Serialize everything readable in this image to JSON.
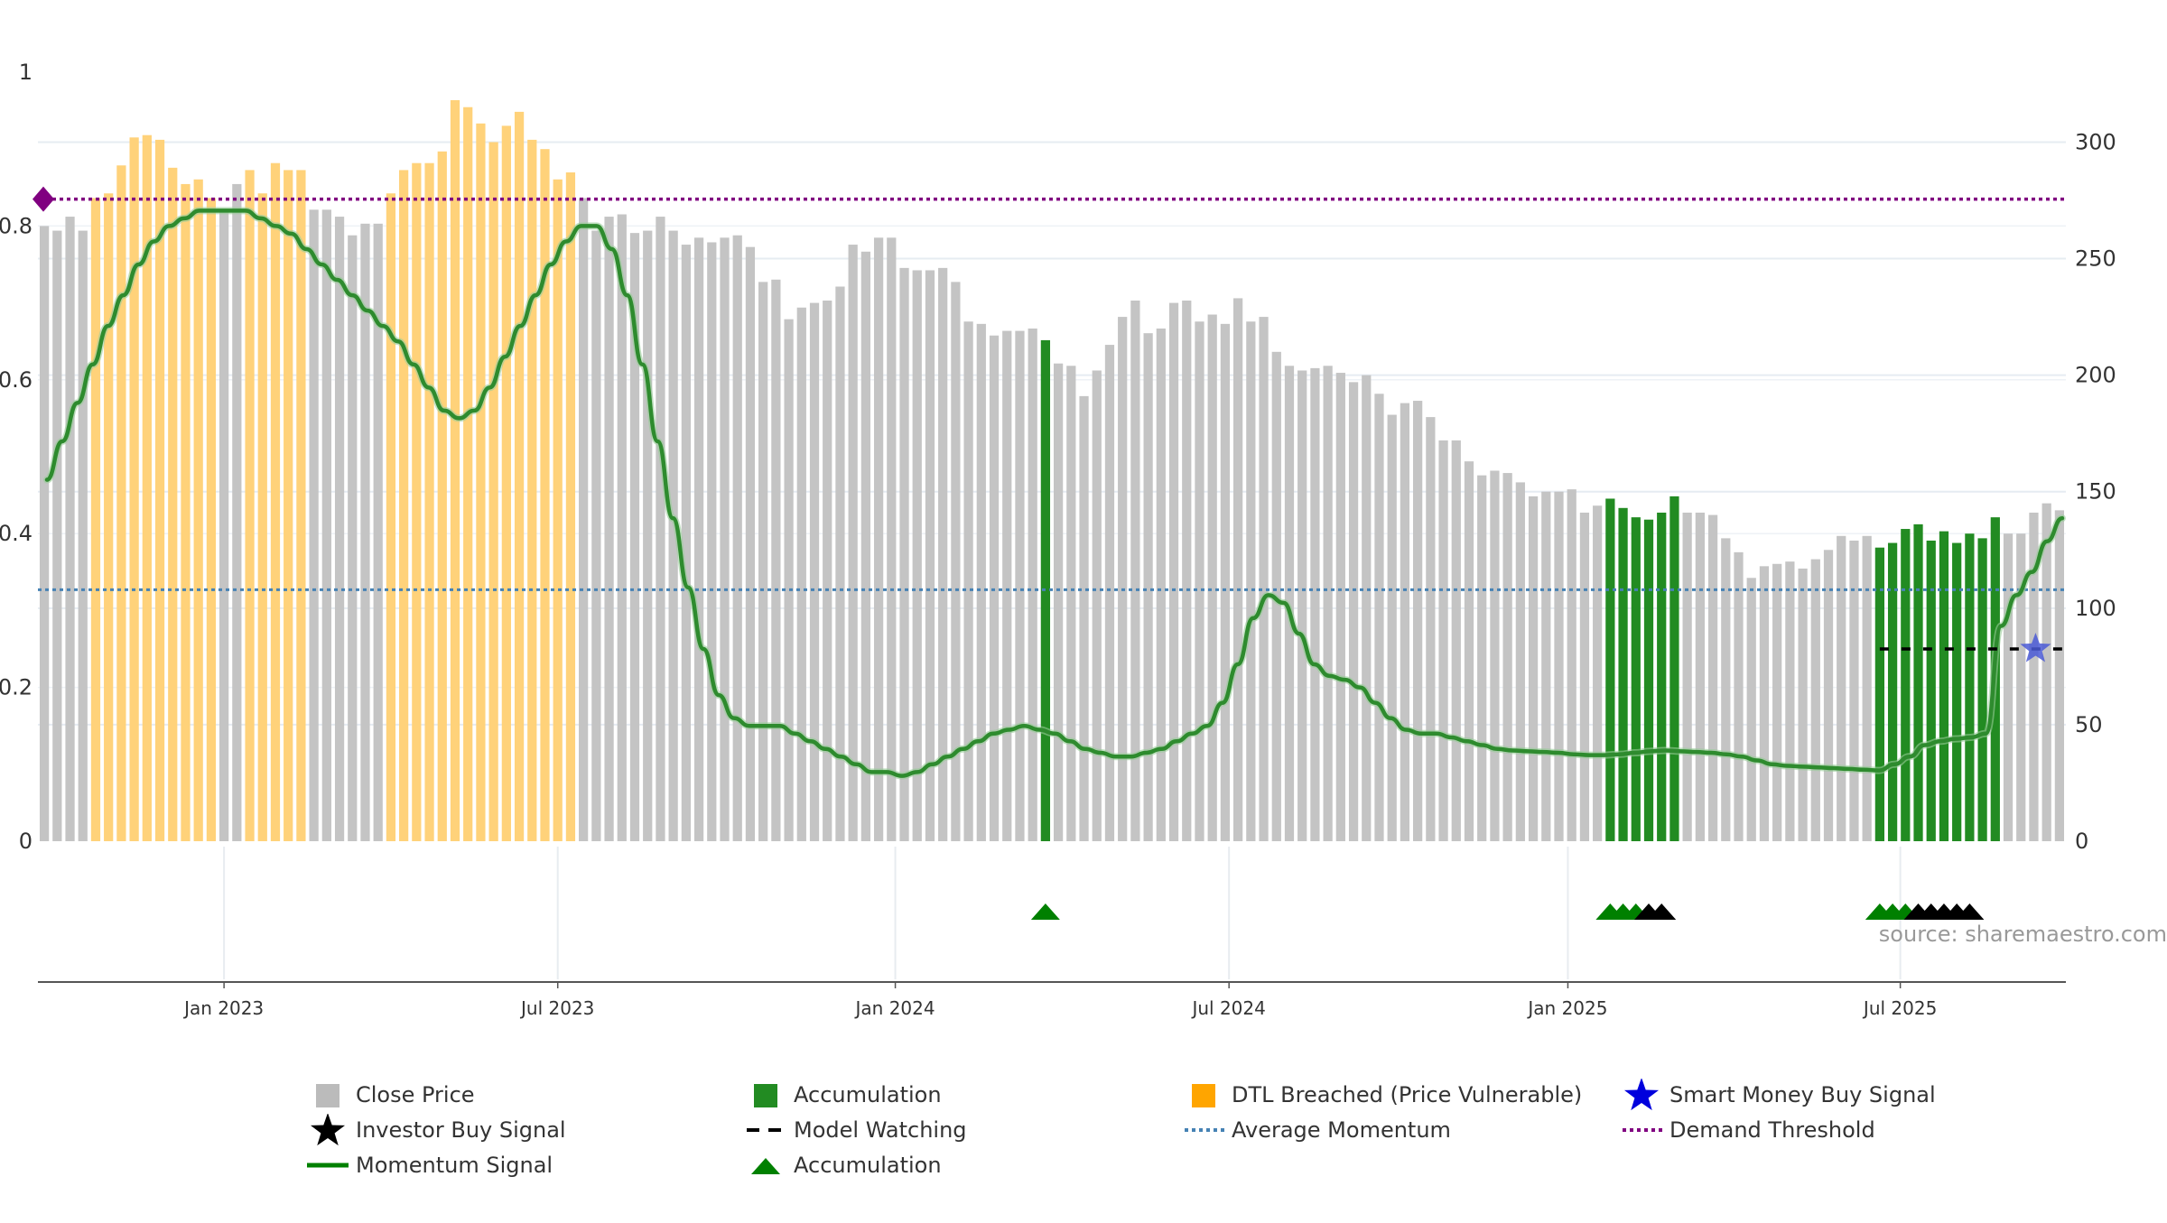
{
  "chart_data": {
    "type": "bar",
    "y_left": {
      "ylim": [
        0,
        1
      ],
      "ticks": [
        "0",
        "0.2",
        "0.4",
        "0.6",
        "0.8",
        "1"
      ]
    },
    "y_right": {
      "ylim": [
        0,
        330
      ],
      "ticks": [
        "0",
        "50",
        "100",
        "150",
        "200",
        "250",
        "300"
      ]
    },
    "x_ticks": [
      {
        "label": "Jan 2023",
        "index": 14.5
      },
      {
        "label": "Jul 2023",
        "index": 40.5
      },
      {
        "label": "Jan 2024",
        "index": 66.8
      },
      {
        "label": "Jul 2024",
        "index": 92.8
      },
      {
        "label": "Jan 2025",
        "index": 119.2
      },
      {
        "label": "Jul 2025",
        "index": 145.1
      }
    ],
    "close_price": [
      264,
      262,
      268,
      262,
      276,
      278,
      290,
      302,
      303,
      301,
      289,
      282,
      284,
      276,
      271,
      282,
      288,
      278,
      291,
      288,
      288,
      271,
      271,
      268,
      260,
      265,
      265,
      278,
      288,
      291,
      291,
      296,
      318,
      315,
      308,
      300,
      307,
      313,
      301,
      297,
      284,
      287,
      276,
      262,
      268,
      269,
      261,
      262,
      268,
      262,
      256,
      259,
      257,
      259,
      260,
      255,
      240,
      241,
      224,
      229,
      231,
      232,
      238,
      256,
      253,
      259,
      259,
      246,
      245,
      245,
      246,
      240,
      223,
      222,
      217,
      219,
      219,
      220,
      215,
      205,
      204,
      191,
      202,
      213,
      225,
      232,
      218,
      220,
      231,
      232,
      223,
      226,
      222,
      233,
      223,
      225,
      210,
      204,
      202,
      203,
      204,
      201,
      197,
      200,
      192,
      183,
      188,
      189,
      182,
      172,
      172,
      163,
      157,
      159,
      158,
      154,
      148,
      150,
      150,
      151,
      141,
      144,
      147,
      143,
      139,
      138,
      141,
      148,
      141,
      141,
      140,
      130,
      124,
      113,
      118,
      119,
      120,
      117,
      121,
      125,
      131,
      129,
      131,
      126,
      128,
      134,
      136,
      129,
      133,
      128,
      132,
      130,
      139,
      132,
      132,
      141,
      145,
      142
    ],
    "momentum": [
      0.47,
      0.52,
      0.57,
      0.62,
      0.67,
      0.71,
      0.75,
      0.78,
      0.8,
      0.81,
      0.82,
      0.82,
      0.82,
      0.82,
      0.81,
      0.8,
      0.79,
      0.77,
      0.75,
      0.73,
      0.71,
      0.69,
      0.67,
      0.65,
      0.62,
      0.59,
      0.56,
      0.55,
      0.56,
      0.59,
      0.63,
      0.67,
      0.71,
      0.75,
      0.78,
      0.8,
      0.8,
      0.77,
      0.71,
      0.62,
      0.52,
      0.42,
      0.33,
      0.25,
      0.19,
      0.16,
      0.15,
      0.15,
      0.15,
      0.14,
      0.13,
      0.12,
      0.11,
      0.1,
      0.09,
      0.09,
      0.085,
      0.09,
      0.1,
      0.11,
      0.12,
      0.13,
      0.14,
      0.145,
      0.15,
      0.145,
      0.14,
      0.13,
      0.12,
      0.115,
      0.11,
      0.11,
      0.115,
      0.12,
      0.13,
      0.14,
      0.15,
      0.18,
      0.23,
      0.29,
      0.32,
      0.31,
      0.27,
      0.23,
      0.215,
      0.21,
      0.2,
      0.18,
      0.16,
      0.145,
      0.14,
      0.14,
      0.135,
      0.13,
      0.125,
      0.12,
      0.118,
      0.117,
      0.116,
      0.115,
      0.113,
      0.112,
      0.112,
      0.113,
      0.115,
      0.117,
      0.118,
      0.117,
      0.116,
      0.115,
      0.113,
      0.11,
      0.105,
      0.1,
      0.098,
      0.097,
      0.096,
      0.095,
      0.094,
      0.093,
      0.092,
      0.1,
      0.11,
      0.125,
      0.13,
      0.133,
      0.135,
      0.14,
      0.28,
      0.32,
      0.35,
      0.39,
      0.42
    ],
    "momentum_start_index": 0,
    "accumulation_bar_indices": [
      78,
      122,
      123,
      124,
      125,
      126,
      127,
      143,
      144,
      145,
      146,
      147,
      148,
      149,
      150,
      151,
      152
    ],
    "dtl_breached_bar_indices": [
      4,
      5,
      6,
      7,
      8,
      9,
      10,
      11,
      12,
      13,
      16,
      17,
      18,
      19,
      20,
      27,
      28,
      29,
      30,
      31,
      32,
      33,
      34,
      35,
      36,
      37,
      38,
      39,
      40,
      41
    ],
    "average_momentum": 0.327,
    "demand_threshold": 0.835,
    "demand_marker_value": 0.835,
    "model_watching": {
      "from_index": 143,
      "to_index": 157,
      "value": 0.25
    },
    "smart_money_buy_signal": {
      "index": 155,
      "value": 0.25
    },
    "accumulation_markers": [
      78,
      122,
      123,
      124,
      143,
      144,
      145
    ],
    "investor_buy_markers": [
      125,
      126,
      146,
      147,
      148,
      149,
      150
    ],
    "source_text": "source: sharemaestro.com",
    "legend": [
      {
        "label": "Close Price",
        "symbol": "square",
        "color": "#bbbbbb"
      },
      {
        "label": "Accumulation",
        "symbol": "square",
        "color": "#228b22"
      },
      {
        "label": "DTL Breached (Price Vulnerable)",
        "symbol": "square",
        "color": "#ffa500"
      },
      {
        "label": "Smart Money Buy Signal",
        "symbol": "star",
        "color": "#0000dd"
      },
      {
        "label": "Investor Buy Signal",
        "symbol": "star",
        "color": "#000000"
      },
      {
        "label": "Model Watching",
        "symbol": "dash",
        "color": "#000000"
      },
      {
        "label": "Average Momentum",
        "symbol": "dot",
        "color": "#4682b4"
      },
      {
        "label": "Demand Threshold",
        "symbol": "dot",
        "color": "#800080"
      },
      {
        "label": "Momentum Signal",
        "symbol": "line",
        "color": "#008000"
      },
      {
        "label": "Accumulation",
        "symbol": "triangle",
        "color": "#008000"
      }
    ],
    "colors": {
      "close_bar": "#c4c4c4",
      "accumulation_bar": "#228b22",
      "dtl_bar": "#ffd27a",
      "momentum_line": "#2e8b2e",
      "average_line": "#4682b4",
      "demand_line": "#800080",
      "grid": "#e6ecf2"
    }
  }
}
